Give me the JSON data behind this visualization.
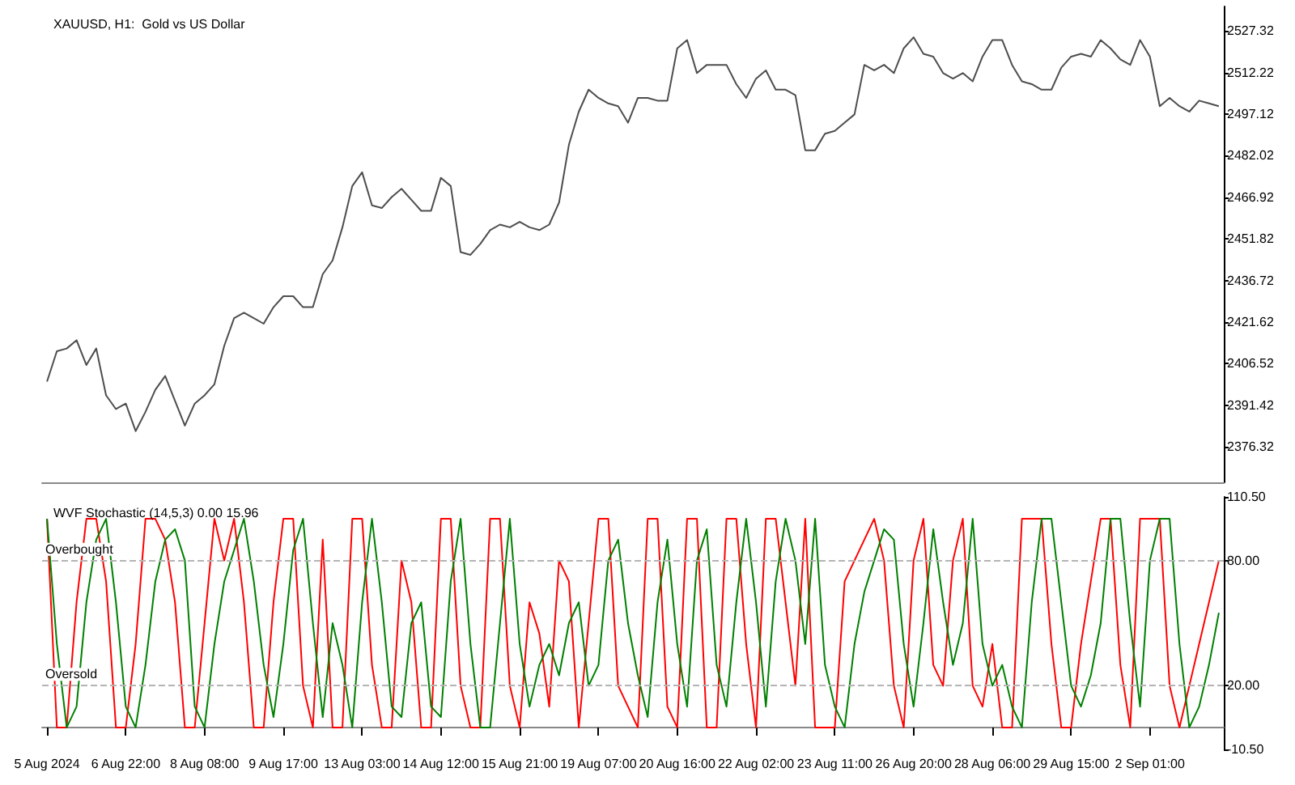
{
  "chart_data": [
    {
      "type": "line",
      "title": "XAUUSD, H1:  Gold vs US Dollar",
      "tick_labels": "y",
      "grid": false,
      "marker": "none",
      "line_style": "solid",
      "categories": [
        null,
        null,
        null,
        null,
        null,
        null,
        null,
        null,
        null,
        null,
        null,
        null,
        null,
        null,
        null,
        null,
        null,
        null,
        null,
        null,
        null,
        null,
        null,
        null,
        null,
        null,
        null,
        null,
        null,
        null,
        null,
        null,
        null,
        null,
        null,
        null,
        null,
        null,
        null,
        null,
        null,
        null,
        null,
        null,
        null,
        null,
        null,
        null,
        null,
        null,
        null,
        null,
        null,
        null,
        null,
        null,
        null,
        null,
        null,
        null,
        null,
        null,
        null,
        null,
        null,
        null,
        null,
        null,
        null,
        null,
        null,
        null,
        null,
        null,
        null,
        null,
        null,
        null,
        null,
        null,
        null,
        null,
        null,
        null,
        null,
        null,
        null,
        null,
        null,
        null,
        null,
        null,
        null,
        null,
        null,
        null,
        null,
        null,
        null,
        null,
        null,
        null,
        null,
        null,
        null,
        null,
        null,
        null,
        null,
        null,
        null,
        null,
        null,
        null,
        null,
        null,
        null,
        null,
        null,
        null
      ],
      "ylim": [
        2363.4,
        2536.2
      ],
      "yticks": [
        2376.32,
        2391.42,
        2406.52,
        2421.62,
        2436.72,
        2451.82,
        2466.92,
        2482.02,
        2497.12,
        2512.22,
        2527.32
      ],
      "series": [
        {
          "color": "#4d4d4d",
          "values": [
            2400,
            2411,
            2412,
            2415,
            2406,
            2412,
            2395,
            2390,
            2392,
            2382,
            2389,
            2397,
            2402,
            2393,
            2384,
            2392,
            2395,
            2399,
            2413,
            2423,
            2425,
            2423,
            2421,
            2427,
            2431,
            2431,
            2427,
            2427,
            2439,
            2444,
            2456,
            2471,
            2476,
            2464,
            2463,
            2467,
            2470,
            2466,
            2462,
            2462,
            2474,
            2471,
            2447,
            2446,
            2450,
            2455,
            2457,
            2456,
            2458,
            2456,
            2455,
            2457,
            2465,
            2486,
            2498,
            2506,
            2503,
            2501,
            2500,
            2494,
            2503,
            2503,
            2502,
            2502,
            2521,
            2524,
            2512,
            2515,
            2515,
            2515,
            2508,
            2503,
            2510,
            2513,
            2506,
            2506,
            2504,
            2484,
            2484,
            2490,
            2491,
            2494,
            2497,
            2515,
            2513,
            2515,
            2512,
            2521,
            2525,
            2519,
            2518,
            2512,
            2510,
            2512,
            2509,
            2518,
            2524,
            2524,
            2515,
            2509,
            2508,
            2506,
            2506,
            2514,
            2518,
            2519,
            2518,
            2524,
            2521,
            2517,
            2515,
            2524,
            2518,
            2500,
            2503,
            2500,
            2498,
            2502,
            2501,
            2500
          ]
        }
      ]
    },
    {
      "type": "line",
      "title": "WVF Stochastic (14,5,3) 0.00 15.96",
      "grid": false,
      "marker": "none",
      "line_style": "solid",
      "categories": [
        "5 Aug 2024",
        null,
        null,
        null,
        null,
        null,
        null,
        null,
        "6 Aug 22:00",
        null,
        null,
        null,
        null,
        null,
        null,
        null,
        "8 Aug 08:00",
        null,
        null,
        null,
        null,
        null,
        null,
        null,
        "9 Aug 17:00",
        null,
        null,
        null,
        null,
        null,
        null,
        null,
        "13 Aug 03:00",
        null,
        null,
        null,
        null,
        null,
        null,
        null,
        "14 Aug 12:00",
        null,
        null,
        null,
        null,
        null,
        null,
        null,
        "15 Aug 21:00",
        null,
        null,
        null,
        null,
        null,
        null,
        null,
        "19 Aug 07:00",
        null,
        null,
        null,
        null,
        null,
        null,
        null,
        "20 Aug 16:00",
        null,
        null,
        null,
        null,
        null,
        null,
        null,
        "22 Aug 02:00",
        null,
        null,
        null,
        null,
        null,
        null,
        null,
        "23 Aug 11:00",
        null,
        null,
        null,
        null,
        null,
        null,
        null,
        "26 Aug 20:00",
        null,
        null,
        null,
        null,
        null,
        null,
        null,
        "28 Aug 06:00",
        null,
        null,
        null,
        null,
        null,
        null,
        null,
        "29 Aug 15:00",
        null,
        null,
        null,
        null,
        null,
        null,
        null,
        "2 Sep 01:00",
        null,
        null,
        null,
        null,
        null,
        null,
        null
      ],
      "ylim": [
        -10.5,
        110.5
      ],
      "yticks": [
        {
          "value": 110.5,
          "label": "110.50"
        },
        {
          "value": 80,
          "label": "80.00"
        },
        {
          "value": 20,
          "label": "20.00"
        },
        {
          "value": -10.5,
          "label": "-10.50"
        }
      ],
      "ref_lines": [
        {
          "axis": "y",
          "value": 80,
          "label": "Overbought",
          "color": "#b4b4b4",
          "line_style": "dashed"
        },
        {
          "axis": "y",
          "value": 20,
          "label": "Oversold",
          "color": "#b4b4b4",
          "line_style": "dashed"
        }
      ],
      "series": [
        {
          "color": "#ff0000",
          "values": [
            100,
            0,
            0,
            60,
            100,
            100,
            70,
            0,
            0,
            40,
            100,
            100,
            90,
            60,
            0,
            0,
            50,
            100,
            80,
            100,
            60,
            0,
            0,
            60,
            100,
            100,
            20,
            0,
            90,
            0,
            0,
            100,
            100,
            30,
            0,
            0,
            80,
            60,
            0,
            0,
            100,
            100,
            20,
            0,
            0,
            100,
            100,
            20,
            0,
            60,
            45,
            10,
            80,
            70,
            0,
            50,
            100,
            100,
            20,
            10,
            0,
            100,
            100,
            10,
            0,
            100,
            100,
            0,
            0,
            100,
            100,
            40,
            0,
            100,
            100,
            60,
            20,
            100,
            0,
            0,
            0,
            70,
            80,
            90,
            100,
            80,
            20,
            0,
            80,
            100,
            30,
            20,
            80,
            100,
            20,
            10,
            40,
            0,
            0,
            100,
            100,
            100,
            40,
            0,
            0,
            40,
            70,
            100,
            100,
            30,
            0,
            100,
            100,
            100,
            20,
            0,
            20,
            40,
            60,
            80
          ]
        },
        {
          "color": "#008000",
          "values": [
            100,
            40,
            0,
            10,
            60,
            90,
            100,
            60,
            10,
            0,
            30,
            70,
            90,
            95,
            80,
            10,
            0,
            40,
            70,
            85,
            100,
            70,
            30,
            5,
            40,
            85,
            100,
            50,
            5,
            50,
            30,
            0,
            60,
            100,
            60,
            10,
            5,
            50,
            60,
            10,
            5,
            70,
            100,
            40,
            0,
            0,
            50,
            100,
            40,
            10,
            30,
            40,
            25,
            50,
            60,
            20,
            30,
            80,
            90,
            50,
            25,
            5,
            60,
            90,
            40,
            10,
            80,
            95,
            30,
            10,
            60,
            100,
            60,
            10,
            70,
            100,
            80,
            40,
            100,
            30,
            10,
            0,
            40,
            65,
            80,
            95,
            90,
            40,
            10,
            50,
            95,
            60,
            30,
            50,
            100,
            40,
            20,
            30,
            10,
            0,
            60,
            100,
            100,
            60,
            20,
            10,
            25,
            50,
            100,
            100,
            50,
            10,
            80,
            100,
            100,
            40,
            0,
            10,
            30,
            55
          ]
        }
      ]
    }
  ]
}
